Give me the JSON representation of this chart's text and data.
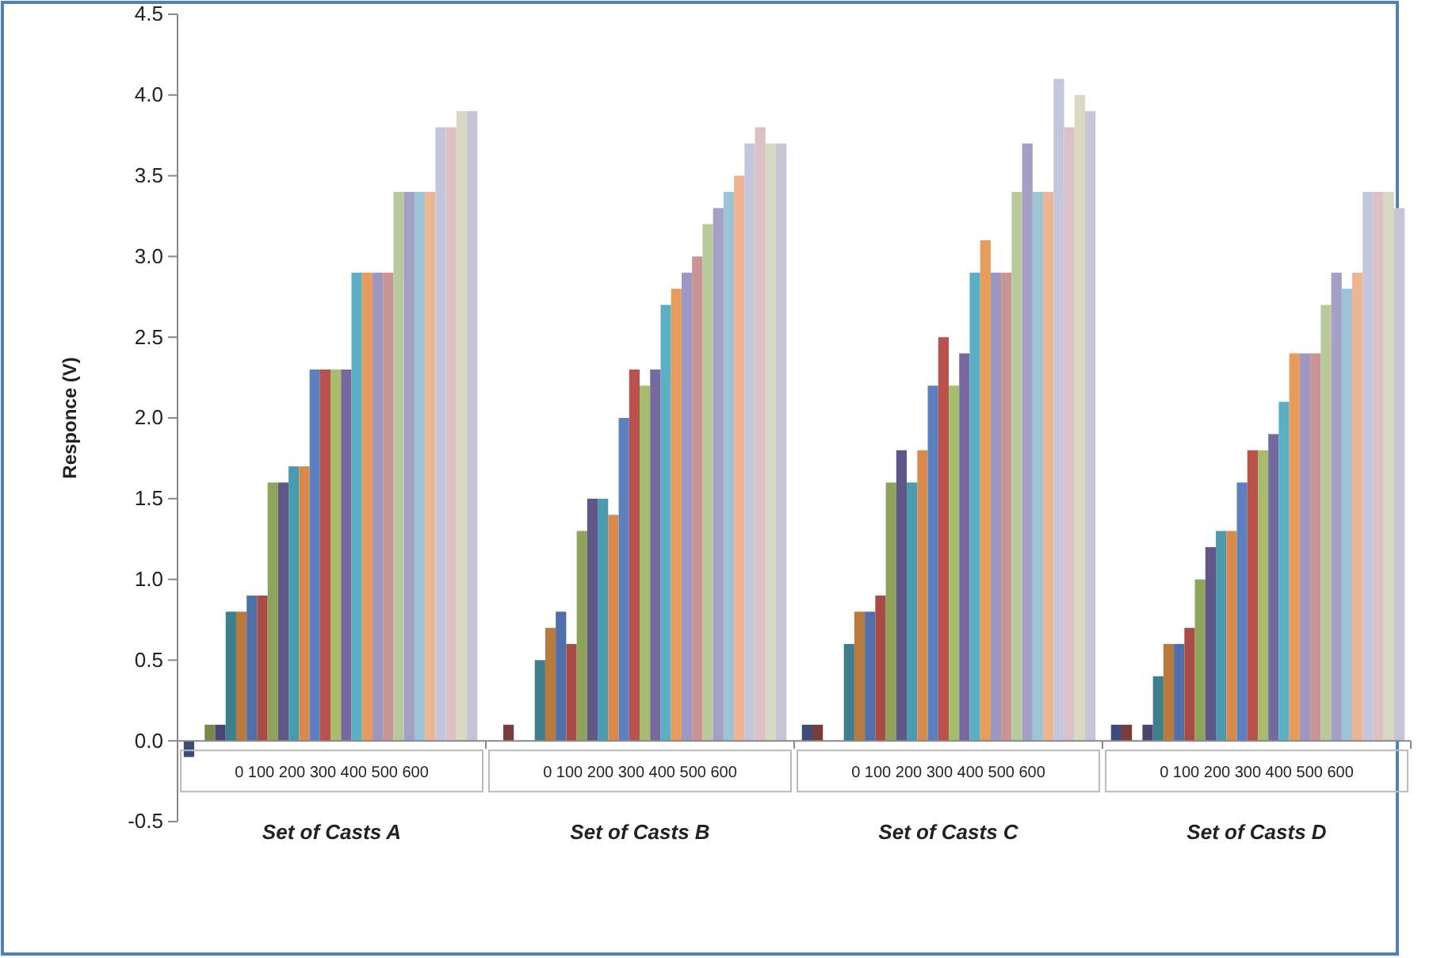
{
  "chart_data": {
    "type": "bar",
    "ylabel": "Responce (V)",
    "categories": [
      "Set of Casts A",
      "Set of Casts B",
      "Set of Casts C",
      "Set of Casts D"
    ],
    "ylim": [
      -0.5,
      4.5
    ],
    "yticks": [
      {
        "value": -0.5,
        "label": "-0.5"
      },
      {
        "value": 0,
        "label": "0.0"
      },
      {
        "value": 0.5,
        "label": "0.5"
      },
      {
        "value": 1,
        "label": "1.0"
      },
      {
        "value": 1.5,
        "label": "1.5"
      },
      {
        "value": 2,
        "label": "2.0"
      },
      {
        "value": 2.5,
        "label": "2.5"
      },
      {
        "value": 3,
        "label": "3.0"
      },
      {
        "value": 3.5,
        "label": "3.5"
      },
      {
        "value": 4,
        "label": "4.0"
      },
      {
        "value": 4.5,
        "label": "4.5"
      }
    ],
    "annotations": [
      "0 100 200 300 400 500 600",
      "0 100 200 300 400 500 600",
      "0 100 200 300 400 500 600",
      "0 100 200 300 400 500 600"
    ],
    "series": [
      {
        "color": "#3b4e7a",
        "values": [
          -0.1,
          0,
          0.1,
          0.1
        ]
      },
      {
        "color": "#7a3b3b",
        "values": [
          0,
          0.1,
          0.1,
          0.1
        ]
      },
      {
        "color": "#77894a",
        "values": [
          0.1,
          0,
          0,
          0
        ]
      },
      {
        "color": "#4a4670",
        "values": [
          0.1,
          0,
          0,
          0.1
        ]
      },
      {
        "color": "#3e7f8c",
        "values": [
          0.8,
          0.5,
          0.6,
          0.4
        ]
      },
      {
        "color": "#b97a3e",
        "values": [
          0.8,
          0.7,
          0.8,
          0.6
        ]
      },
      {
        "color": "#4f6fa8",
        "values": [
          0.9,
          0.8,
          0.8,
          0.6
        ]
      },
      {
        "color": "#a84a45",
        "values": [
          0.9,
          0.6,
          0.9,
          0.7
        ]
      },
      {
        "color": "#8ea45a",
        "values": [
          1.6,
          1.3,
          1.6,
          1.0
        ]
      },
      {
        "color": "#5f5788",
        "values": [
          1.6,
          1.5,
          1.8,
          1.2
        ]
      },
      {
        "color": "#4a9bb0",
        "values": [
          1.7,
          1.5,
          1.6,
          1.3
        ]
      },
      {
        "color": "#d9894a",
        "values": [
          1.7,
          1.4,
          1.8,
          1.3
        ]
      },
      {
        "color": "#5b7fbf",
        "values": [
          2.3,
          2.0,
          2.2,
          1.6
        ]
      },
      {
        "color": "#b9524d",
        "values": [
          2.3,
          2.3,
          2.5,
          1.8
        ]
      },
      {
        "color": "#a5bd6c",
        "values": [
          2.3,
          2.2,
          2.2,
          1.8
        ]
      },
      {
        "color": "#7569a0",
        "values": [
          2.3,
          2.3,
          2.4,
          1.9
        ]
      },
      {
        "color": "#5aafc5",
        "values": [
          2.9,
          2.7,
          2.9,
          2.1
        ]
      },
      {
        "color": "#e89c5c",
        "values": [
          2.9,
          2.8,
          3.1,
          2.4
        ]
      },
      {
        "color": "#9e97bf",
        "values": [
          2.9,
          2.9,
          2.9,
          2.4
        ]
      },
      {
        "color": "#c99594",
        "values": [
          2.9,
          3.0,
          2.9,
          2.4
        ]
      },
      {
        "color": "#b8c99b",
        "values": [
          3.4,
          3.2,
          3.4,
          2.7
        ]
      },
      {
        "color": "#a49fc4",
        "values": [
          3.4,
          3.3,
          3.7,
          2.9
        ]
      },
      {
        "color": "#9cc3d6",
        "values": [
          3.4,
          3.4,
          3.4,
          2.8
        ]
      },
      {
        "color": "#eeb593",
        "values": [
          3.4,
          3.5,
          3.4,
          2.9
        ]
      },
      {
        "color": "#c3c6dc",
        "values": [
          3.8,
          3.7,
          4.1,
          3.4
        ]
      },
      {
        "color": "#dcc0c4",
        "values": [
          3.8,
          3.8,
          3.8,
          3.4
        ]
      },
      {
        "color": "#d8d8c3",
        "values": [
          3.9,
          3.7,
          4.0,
          3.4
        ]
      },
      {
        "color": "#c7c5d3",
        "values": [
          3.9,
          3.7,
          3.9,
          3.3
        ]
      }
    ]
  }
}
